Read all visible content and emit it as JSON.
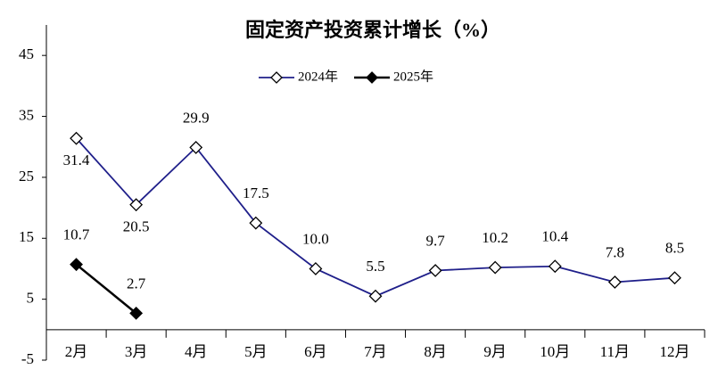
{
  "chart_data": {
    "type": "line",
    "title": "固定资产投资累计增长（%）",
    "categories": [
      "2月",
      "3月",
      "4月",
      "5月",
      "6月",
      "7月",
      "8月",
      "9月",
      "10月",
      "11月",
      "12月"
    ],
    "series": [
      {
        "name": "2024年",
        "color": "#1f1f8a",
        "marker_fill": "#ffffff",
        "values": [
          31.4,
          20.5,
          29.9,
          17.5,
          10.0,
          5.5,
          9.7,
          10.2,
          10.4,
          7.8,
          8.5
        ],
        "value_labels": [
          "31.4",
          "20.5",
          "29.9",
          "17.5",
          "10.0",
          "5.5",
          "9.7",
          "10.2",
          "10.4",
          "7.8",
          "8.5"
        ]
      },
      {
        "name": "2025年",
        "color": "#000000",
        "marker_fill": "#000000",
        "values": [
          10.7,
          2.7,
          null,
          null,
          null,
          null,
          null,
          null,
          null,
          null,
          null
        ],
        "value_labels": [
          "10.7",
          "2.7",
          null,
          null,
          null,
          null,
          null,
          null,
          null,
          null,
          null
        ]
      }
    ],
    "ylim": [
      -5,
      50
    ],
    "yticks": [
      -5,
      5,
      15,
      25,
      35,
      45
    ],
    "grid": false,
    "legend": "top"
  }
}
